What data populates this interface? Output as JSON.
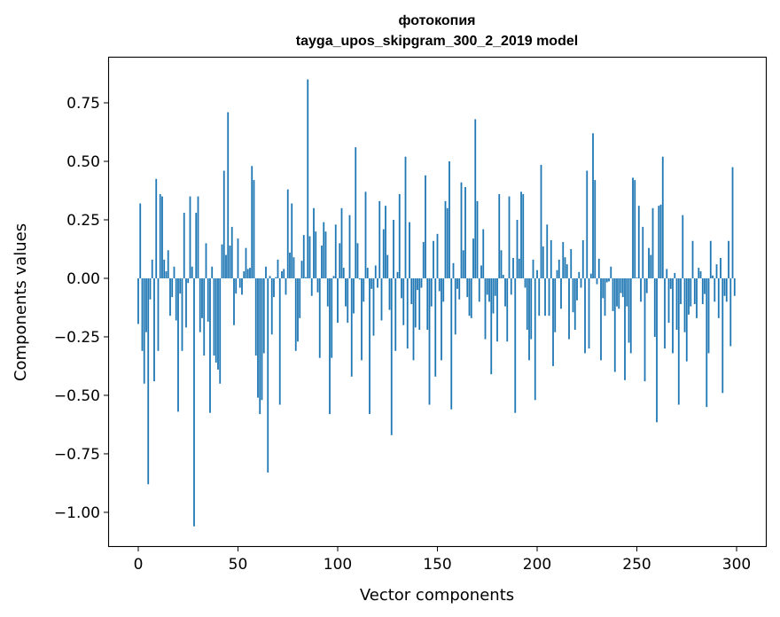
{
  "chart_data": {
    "type": "bar",
    "title_line1": "фотокопия",
    "title_line2": "tayga_upos_skipgram_300_2_2019 model",
    "xlabel": "Vector components",
    "ylabel": "Components values",
    "xlim": [
      -15.1,
      315.1
    ],
    "ylim": [
      -1.148,
      0.947
    ],
    "xticks": [
      0,
      50,
      100,
      150,
      200,
      250,
      300
    ],
    "xtick_labels": [
      "0",
      "50",
      "100",
      "150",
      "200",
      "250",
      "300"
    ],
    "yticks": [
      0.75,
      0.5,
      0.25,
      0.0,
      -0.25,
      -0.5,
      -0.75,
      -1.0
    ],
    "ytick_labels": [
      "0.75",
      "0.50",
      "0.25",
      "0.00",
      "−0.25",
      "−0.50",
      "−0.75",
      "−1.00"
    ],
    "bar_color": "#1f77b4",
    "grid": false,
    "values": [
      -0.195,
      0.32,
      -0.31,
      -0.45,
      -0.23,
      -0.88,
      -0.09,
      0.08,
      -0.44,
      0.425,
      -0.31,
      0.36,
      0.35,
      0.08,
      0.03,
      0.12,
      -0.16,
      -0.08,
      0.05,
      -0.18,
      -0.57,
      -0.065,
      -0.31,
      0.28,
      -0.21,
      -0.02,
      0.35,
      0.05,
      -1.06,
      0.28,
      0.35,
      -0.23,
      -0.17,
      -0.33,
      0.15,
      -0.185,
      -0.575,
      0.05,
      -0.33,
      -0.36,
      -0.39,
      -0.45,
      0.145,
      0.46,
      0.1,
      0.71,
      0.14,
      0.22,
      -0.2,
      -0.065,
      0.17,
      -0.04,
      -0.07,
      0.03,
      0.13,
      0.04,
      0.045,
      0.48,
      0.42,
      -0.33,
      -0.51,
      -0.58,
      -0.52,
      -0.32,
      0.05,
      -0.83,
      0.01,
      -0.24,
      -0.08,
      0.005,
      0.08,
      -0.54,
      0.03,
      0.04,
      -0.07,
      0.38,
      0.11,
      0.32,
      0.09,
      -0.31,
      -0.27,
      -0.17,
      0.075,
      0.185,
      0.005,
      0.85,
      0.18,
      -0.075,
      0.3,
      0.2,
      -0.06,
      -0.34,
      0.14,
      0.24,
      0.2,
      -0.12,
      -0.58,
      -0.34,
      0.01,
      0.23,
      -0.19,
      0.15,
      0.3,
      0.045,
      -0.12,
      -0.19,
      0.27,
      -0.42,
      -0.15,
      0.56,
      0.15,
      -0.005,
      -0.35,
      -0.1,
      0.37,
      0.045,
      -0.58,
      -0.045,
      -0.245,
      0.055,
      -0.04,
      0.33,
      -0.18,
      0.21,
      0.31,
      0.1,
      -0.135,
      -0.67,
      0.25,
      -0.31,
      0.027,
      0.36,
      -0.085,
      -0.2,
      0.52,
      -0.3,
      0.24,
      -0.11,
      -0.35,
      -0.21,
      -0.05,
      -0.22,
      -0.04,
      0.155,
      0.44,
      -0.22,
      -0.54,
      -0.12,
      0.16,
      -0.42,
      0.19,
      -0.055,
      -0.35,
      -0.1,
      0.33,
      0.3,
      0.5,
      -0.56,
      0.065,
      -0.24,
      -0.045,
      -0.09,
      0.41,
      0.12,
      0.39,
      -0.08,
      -0.16,
      -0.17,
      0.17,
      0.68,
      0.33,
      -0.1,
      0.055,
      0.21,
      -0.26,
      -0.07,
      -0.1,
      -0.41,
      -0.15,
      -0.075,
      -0.27,
      0.36,
      0.12,
      0.015,
      -0.12,
      -0.27,
      0.35,
      -0.07,
      0.087,
      -0.575,
      0.25,
      0.084,
      0.37,
      0.36,
      -0.04,
      -0.22,
      -0.35,
      -0.26,
      0.08,
      -0.52,
      0.035,
      -0.16,
      0.485,
      0.136,
      -0.16,
      0.23,
      -0.16,
      0.163,
      -0.375,
      -0.23,
      0.035,
      0.08,
      -0.13,
      0.155,
      0.09,
      0.06,
      -0.26,
      0.125,
      -0.145,
      -0.22,
      -0.094,
      0.027,
      -0.04,
      0.163,
      -0.32,
      0.46,
      -0.3,
      0.02,
      0.62,
      0.42,
      -0.025,
      0.084,
      -0.35,
      -0.085,
      -0.16,
      -0.017,
      -0.013,
      0.05,
      -0.14,
      -0.4,
      -0.12,
      -0.13,
      -0.063,
      -0.08,
      -0.435,
      -0.12,
      -0.275,
      -0.32,
      0.43,
      0.42,
      0.003,
      0.31,
      -0.1,
      0.22,
      -0.44,
      -0.063,
      0.13,
      0.1,
      0.3,
      -0.25,
      -0.615,
      0.31,
      0.315,
      0.52,
      -0.3,
      0.04,
      -0.19,
      -0.045,
      -0.32,
      0.023,
      -0.22,
      -0.54,
      -0.11,
      0.27,
      -0.23,
      -0.355,
      -0.155,
      -0.12,
      0.16,
      -0.11,
      -0.17,
      0.045,
      0.03,
      -0.11,
      -0.067,
      -0.55,
      -0.32,
      0.16,
      0.012,
      -0.1,
      0.06,
      -0.17,
      0.087,
      -0.49,
      -0.075,
      -0.1,
      0.16,
      -0.29,
      0.475,
      -0.075
    ]
  }
}
